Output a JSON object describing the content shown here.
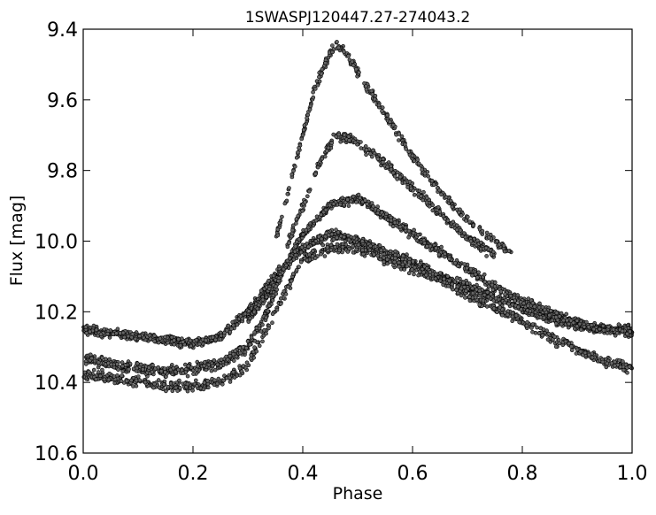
{
  "chart_data": {
    "type": "scatter",
    "title": "1SWASPJ120447.27-274043.2",
    "xlabel": "Phase",
    "ylabel": "Flux [mag]",
    "xlim": [
      0.0,
      1.0
    ],
    "ylim": [
      10.6,
      9.4
    ],
    "y_axis_inverted": true,
    "grid": false,
    "legend": "none",
    "marker_color": "#666666",
    "marker_edge_color": "#000000",
    "x_ticks": [
      0.0,
      0.2,
      0.4,
      0.6,
      0.8,
      1.0
    ],
    "x_tick_labels": [
      "0.0",
      "0.2",
      "0.4",
      "0.6",
      "0.8",
      "1.0"
    ],
    "y_ticks": [
      9.4,
      9.6,
      9.8,
      10.0,
      10.2,
      10.4,
      10.6
    ],
    "y_tick_labels": [
      "9.4",
      "9.6",
      "9.8",
      "10.0",
      "10.2",
      "10.4",
      "10.6"
    ],
    "series": [
      {
        "branch": "main",
        "x": [
          0.0,
          0.05,
          0.1,
          0.15,
          0.2,
          0.25,
          0.3,
          0.35,
          0.4,
          0.45,
          0.5,
          0.55,
          0.6,
          0.65,
          0.7,
          0.75,
          0.8,
          0.85,
          0.9,
          0.95,
          1.0
        ],
        "y": [
          10.25,
          10.26,
          10.27,
          10.28,
          10.29,
          10.27,
          10.2,
          10.1,
          10.02,
          9.98,
          10.0,
          10.03,
          10.06,
          10.1,
          10.13,
          10.16,
          10.19,
          10.22,
          10.24,
          10.25,
          10.25
        ]
      },
      {
        "branch": "upper",
        "x": [
          0.3,
          0.35,
          0.4,
          0.45,
          0.5,
          0.55,
          0.6,
          0.65,
          0.7,
          0.75,
          0.8,
          0.85,
          0.9,
          0.95,
          1.0
        ],
        "y": [
          10.22,
          10.12,
          9.98,
          9.9,
          9.88,
          9.93,
          9.98,
          10.03,
          10.08,
          10.13,
          10.17,
          10.2,
          10.23,
          10.25,
          10.26
        ]
      },
      {
        "branch": "lower",
        "x": [
          0.0,
          0.05,
          0.1,
          0.15,
          0.2,
          0.25,
          0.3,
          0.35,
          0.4,
          0.45,
          0.5,
          0.55,
          0.6,
          0.65,
          0.7,
          0.75,
          0.8,
          0.85,
          0.9,
          0.95,
          1.0
        ],
        "y": [
          10.38,
          10.39,
          10.4,
          10.41,
          10.41,
          10.4,
          10.35,
          10.2,
          10.05,
          10.02,
          10.02,
          10.05,
          10.08,
          10.11,
          10.15,
          10.19,
          10.23,
          10.27,
          10.31,
          10.34,
          10.36
        ]
      },
      {
        "branch": "bright-a",
        "x": [
          0.35,
          0.38,
          0.4,
          0.42,
          0.44,
          0.46,
          0.48,
          0.5,
          0.52,
          0.55,
          0.6,
          0.65,
          0.7,
          0.75,
          0.78
        ],
        "y": [
          10.0,
          9.82,
          9.7,
          9.58,
          9.5,
          9.44,
          9.47,
          9.52,
          9.57,
          9.64,
          9.76,
          9.86,
          9.94,
          10.0,
          10.04
        ]
      },
      {
        "branch": "bright-b",
        "x": [
          0.37,
          0.4,
          0.43,
          0.46,
          0.5,
          0.55,
          0.6,
          0.65,
          0.7,
          0.75
        ],
        "y": [
          10.02,
          9.9,
          9.78,
          9.7,
          9.72,
          9.78,
          9.85,
          9.92,
          9.99,
          10.04
        ]
      },
      {
        "branch": "faint-early",
        "x": [
          0.0,
          0.05,
          0.1,
          0.15,
          0.2,
          0.25,
          0.3,
          0.33,
          0.36
        ],
        "y": [
          10.33,
          10.35,
          10.36,
          10.37,
          10.36,
          10.35,
          10.3,
          10.22,
          10.1
        ]
      }
    ],
    "n_points_approx": 4500
  }
}
